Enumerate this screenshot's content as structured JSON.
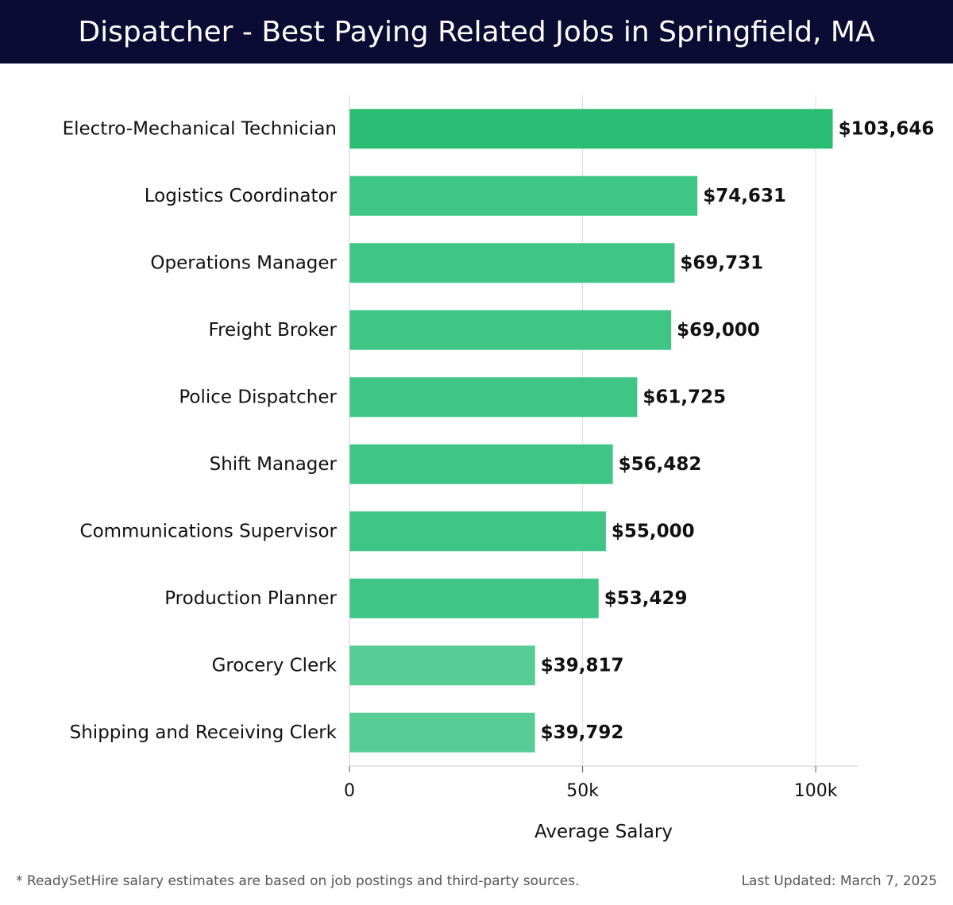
{
  "header": {
    "title": "Dispatcher - Best Paying Related Jobs in Springfield, MA"
  },
  "chart_data": {
    "type": "bar",
    "orientation": "horizontal",
    "categories": [
      "Electro-Mechanical Technician",
      "Logistics Coordinator",
      "Operations Manager",
      "Freight Broker",
      "Police Dispatcher",
      "Shift Manager",
      "Communications Supervisor",
      "Production Planner",
      "Grocery Clerk",
      "Shipping and Receiving Clerk"
    ],
    "values": [
      103646,
      74631,
      69731,
      69000,
      61725,
      56482,
      55000,
      53429,
      39817,
      39792
    ],
    "value_labels": [
      "$103,646",
      "$74,631",
      "$69,731",
      "$69,000",
      "$61,725",
      "$56,482",
      "$55,000",
      "$53,429",
      "$39,817",
      "$39,792"
    ],
    "xlabel": "Average Salary",
    "ylabel": "",
    "xlim": [
      0,
      109000
    ],
    "xticks": [
      0,
      50000,
      100000
    ],
    "xtick_labels": [
      "0",
      "50k",
      "100k"
    ],
    "grid": "vertical",
    "colors": {
      "top_bar": "#2bbd74",
      "bar": "#3fc586",
      "light_bar": "#58cc95"
    }
  },
  "footer": {
    "note": "* ReadySetHire salary estimates are based on job postings and third-party sources.",
    "updated": "Last Updated: March 7, 2025"
  }
}
